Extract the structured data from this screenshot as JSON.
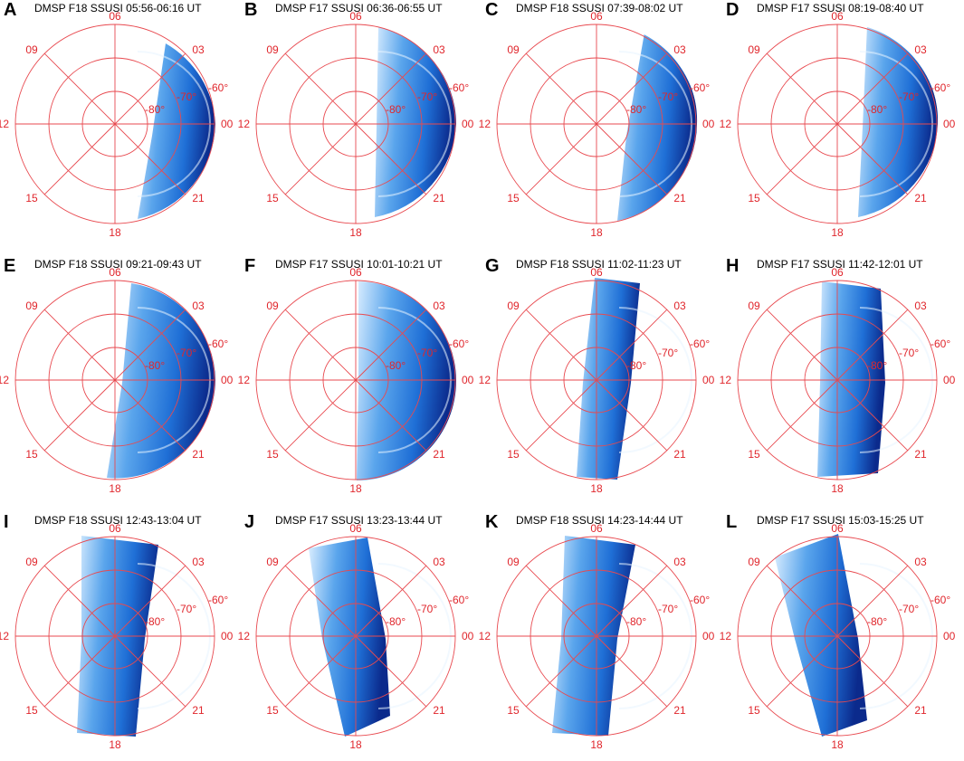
{
  "colors": {
    "grid": "#e8494f",
    "label": "#e0262c",
    "swath_dark": "#0b2a8c",
    "swath_mid": "#1f6fd6",
    "swath_light": "#dbeeff"
  },
  "grid_labels": {
    "mlt": [
      "06",
      "03",
      "00",
      "21",
      "18",
      "15",
      "12",
      "09"
    ],
    "lat": [
      "-60°",
      "-70°",
      "-80°"
    ]
  },
  "panels": [
    {
      "letter": "A",
      "title": "DMSP F18 SSUSI 05:56-06:16 UT",
      "swath": "right-half"
    },
    {
      "letter": "B",
      "title": "DMSP F17 SSUSI 06:36-06:55 UT",
      "swath": "right-half"
    },
    {
      "letter": "C",
      "title": "DMSP F18 SSUSI 07:39-08:02 UT",
      "swath": "right-half"
    },
    {
      "letter": "D",
      "title": "DMSP F17 SSUSI 08:19-08:40 UT",
      "swath": "right-half"
    },
    {
      "letter": "E",
      "title": "DMSP F18 SSUSI 09:21-09:43 UT",
      "swath": "right-half"
    },
    {
      "letter": "F",
      "title": "DMSP F17 SSUSI 10:01-10:21 UT",
      "swath": "right-half"
    },
    {
      "letter": "G",
      "title": "DMSP F18 SSUSI 11:02-11:23 UT",
      "swath": "band"
    },
    {
      "letter": "H",
      "title": "DMSP F17 SSUSI 11:42-12:01 UT",
      "swath": "band"
    },
    {
      "letter": "I",
      "title": "DMSP F18 SSUSI 12:43-13:04 UT",
      "swath": "band"
    },
    {
      "letter": "J",
      "title": "DMSP F17 SSUSI 13:23-13:44 UT",
      "swath": "band"
    },
    {
      "letter": "K",
      "title": "DMSP F18 SSUSI 14:23-14:44 UT",
      "swath": "band"
    },
    {
      "letter": "L",
      "title": "DMSP F17 SSUSI 15:03-15:25 UT",
      "swath": "band"
    }
  ]
}
